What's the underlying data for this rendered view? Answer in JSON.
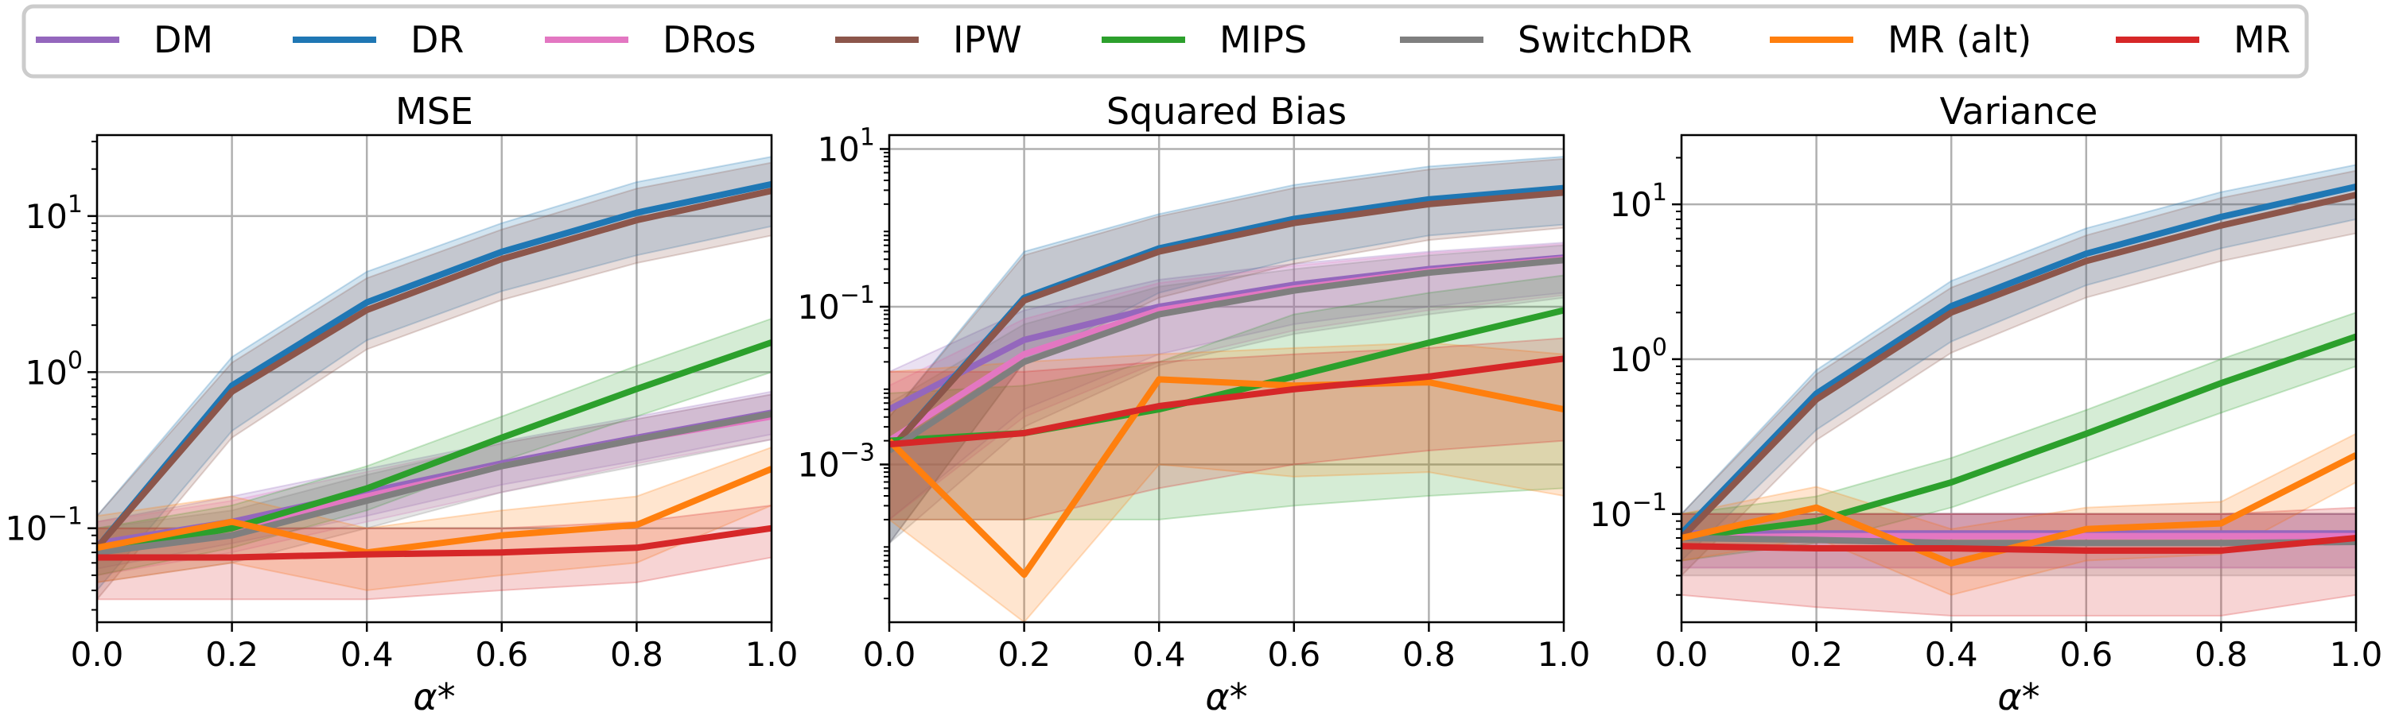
{
  "legend": {
    "placement": "top",
    "entries": [
      {
        "name": "DM",
        "color": "#9467bd"
      },
      {
        "name": "DR",
        "color": "#1f77b4"
      },
      {
        "name": "DRos",
        "color": "#e377c2"
      },
      {
        "name": "IPW",
        "color": "#8c564b"
      },
      {
        "name": "MIPS",
        "color": "#2ca02c"
      },
      {
        "name": "SwitchDR",
        "color": "#7f7f7f"
      },
      {
        "name": "MR (alt)",
        "color": "#ff7f0e"
      },
      {
        "name": "MR",
        "color": "#d62728"
      }
    ]
  },
  "chart_data": [
    {
      "type": "line",
      "title": "MSE",
      "xlabel": "α*",
      "ylabel": "",
      "yscale": "log",
      "grid": true,
      "xlim": [
        0.0,
        1.0
      ],
      "ylim": [
        0.025,
        33
      ],
      "xticks": [
        "0.0",
        "0.2",
        "0.4",
        "0.6",
        "0.8",
        "1.0"
      ],
      "yticks": [
        {
          "value": 0.1,
          "base": "10",
          "exp": "−1"
        },
        {
          "value": 1,
          "base": "10",
          "exp": "0"
        },
        {
          "value": 10,
          "base": "10",
          "exp": "1"
        }
      ],
      "x": [
        0.0,
        0.2,
        0.4,
        0.6,
        0.8,
        1.0
      ],
      "series": [
        {
          "name": "DM",
          "values": [
            0.08,
            0.11,
            0.17,
            0.26,
            0.38,
            0.55
          ],
          "lower": [
            0.055,
            0.08,
            0.12,
            0.19,
            0.27,
            0.4
          ],
          "upper": [
            0.11,
            0.16,
            0.24,
            0.36,
            0.52,
            0.75
          ]
        },
        {
          "name": "DR",
          "values": [
            0.075,
            0.82,
            2.8,
            5.9,
            10.5,
            16
          ],
          "lower": [
            0.04,
            0.42,
            1.6,
            3.3,
            5.6,
            8.6
          ],
          "upper": [
            0.12,
            1.25,
            4.4,
            9.0,
            16.5,
            24
          ]
        },
        {
          "name": "DRos",
          "values": [
            0.075,
            0.1,
            0.16,
            0.25,
            0.37,
            0.52
          ],
          "lower": [
            0.05,
            0.07,
            0.11,
            0.17,
            0.26,
            0.37
          ],
          "upper": [
            0.11,
            0.15,
            0.23,
            0.35,
            0.5,
            0.72
          ]
        },
        {
          "name": "IPW",
          "values": [
            0.075,
            0.75,
            2.5,
            5.3,
            9.4,
            14.5
          ],
          "lower": [
            0.035,
            0.38,
            1.4,
            2.9,
            5.0,
            7.5
          ],
          "upper": [
            0.12,
            1.15,
            4.0,
            8.2,
            15,
            22
          ]
        },
        {
          "name": "MIPS",
          "values": [
            0.07,
            0.1,
            0.18,
            0.38,
            0.78,
            1.55
          ],
          "lower": [
            0.05,
            0.075,
            0.13,
            0.27,
            0.52,
            1.0
          ],
          "upper": [
            0.1,
            0.14,
            0.25,
            0.52,
            1.1,
            2.2
          ]
        },
        {
          "name": "SwitchDR",
          "values": [
            0.07,
            0.09,
            0.15,
            0.25,
            0.37,
            0.54
          ],
          "lower": [
            0.045,
            0.06,
            0.1,
            0.17,
            0.25,
            0.37
          ],
          "upper": [
            0.1,
            0.13,
            0.22,
            0.35,
            0.5,
            0.72
          ]
        },
        {
          "name": "MR (alt)",
          "values": [
            0.075,
            0.11,
            0.07,
            0.09,
            0.105,
            0.24
          ],
          "lower": [
            0.045,
            0.06,
            0.04,
            0.05,
            0.06,
            0.14
          ],
          "upper": [
            0.12,
            0.16,
            0.1,
            0.13,
            0.16,
            0.33
          ]
        },
        {
          "name": "MR",
          "values": [
            0.065,
            0.065,
            0.068,
            0.07,
            0.075,
            0.1
          ],
          "lower": [
            0.035,
            0.035,
            0.035,
            0.04,
            0.045,
            0.065
          ],
          "upper": [
            0.1,
            0.1,
            0.1,
            0.1,
            0.11,
            0.14
          ]
        }
      ]
    },
    {
      "type": "line",
      "title": "Squared Bias",
      "xlabel": "α*",
      "ylabel": "",
      "yscale": "log",
      "grid": true,
      "xlim": [
        0.0,
        1.0
      ],
      "ylim": [
        1e-05,
        15
      ],
      "xticks": [
        "0.0",
        "0.2",
        "0.4",
        "0.6",
        "0.8",
        "1.0"
      ],
      "yticks": [
        {
          "value": 0.001,
          "base": "10",
          "exp": "−3"
        },
        {
          "value": 0.1,
          "base": "10",
          "exp": "−1"
        },
        {
          "value": 10,
          "base": "10",
          "exp": "1"
        }
      ],
      "x": [
        0.0,
        0.2,
        0.4,
        0.6,
        0.8,
        1.0
      ],
      "series": [
        {
          "name": "DM",
          "values": [
            0.005,
            0.038,
            0.1,
            0.19,
            0.3,
            0.42
          ],
          "lower": [
            0.0002,
            0.005,
            0.025,
            0.06,
            0.1,
            0.15
          ],
          "upper": [
            0.015,
            0.09,
            0.22,
            0.35,
            0.5,
            0.65
          ]
        },
        {
          "name": "DR",
          "values": [
            0.0015,
            0.13,
            0.55,
            1.3,
            2.3,
            3.2
          ],
          "lower": [
            0.0001,
            0.02,
            0.15,
            0.4,
            0.8,
            1.1
          ],
          "upper": [
            0.004,
            0.5,
            1.5,
            3.5,
            6.0,
            8.0
          ]
        },
        {
          "name": "DRos",
          "values": [
            0.002,
            0.025,
            0.09,
            0.17,
            0.28,
            0.4
          ],
          "lower": [
            0.0002,
            0.004,
            0.02,
            0.05,
            0.09,
            0.14
          ],
          "upper": [
            0.01,
            0.07,
            0.2,
            0.33,
            0.48,
            0.62
          ]
        },
        {
          "name": "IPW",
          "values": [
            0.0015,
            0.12,
            0.5,
            1.15,
            2.0,
            2.8
          ],
          "lower": [
            0.0001,
            0.02,
            0.13,
            0.35,
            0.7,
            1.0
          ],
          "upper": [
            0.004,
            0.45,
            1.4,
            3.2,
            5.5,
            7.5
          ]
        },
        {
          "name": "MIPS",
          "values": [
            0.002,
            0.0025,
            0.005,
            0.013,
            0.035,
            0.09
          ],
          "lower": [
            0.0002,
            0.0002,
            0.0002,
            0.0003,
            0.0004,
            0.0005
          ],
          "upper": [
            0.008,
            0.01,
            0.02,
            0.08,
            0.15,
            0.25
          ]
        },
        {
          "name": "SwitchDR",
          "values": [
            0.0015,
            0.02,
            0.08,
            0.16,
            0.27,
            0.39
          ],
          "lower": [
            0.0001,
            0.003,
            0.018,
            0.045,
            0.08,
            0.13
          ],
          "upper": [
            0.006,
            0.06,
            0.18,
            0.3,
            0.45,
            0.6
          ]
        },
        {
          "name": "MR (alt)",
          "values": [
            0.002,
            4e-05,
            0.012,
            0.01,
            0.011,
            0.005
          ],
          "lower": [
            0.0002,
            1e-05,
            0.001,
            0.0007,
            0.0008,
            0.0004
          ],
          "upper": [
            0.015,
            0.02,
            0.025,
            0.03,
            0.035,
            0.025
          ]
        },
        {
          "name": "MR",
          "values": [
            0.0018,
            0.0025,
            0.0055,
            0.009,
            0.013,
            0.022
          ],
          "lower": [
            0.0002,
            0.0002,
            0.0005,
            0.001,
            0.0015,
            0.002
          ],
          "upper": [
            0.015,
            0.015,
            0.02,
            0.025,
            0.03,
            0.04
          ]
        }
      ]
    },
    {
      "type": "line",
      "title": "Variance",
      "xlabel": "α*",
      "ylabel": "",
      "yscale": "log",
      "grid": true,
      "xlim": [
        0.0,
        1.0
      ],
      "ylim": [
        0.02,
        28
      ],
      "xticks": [
        "0.0",
        "0.2",
        "0.4",
        "0.6",
        "0.8",
        "1.0"
      ],
      "yticks": [
        {
          "value": 0.1,
          "base": "10",
          "exp": "−1"
        },
        {
          "value": 1,
          "base": "10",
          "exp": "0"
        },
        {
          "value": 10,
          "base": "10",
          "exp": "1"
        }
      ],
      "x": [
        0.0,
        0.2,
        0.4,
        0.6,
        0.8,
        1.0
      ],
      "series": [
        {
          "name": "DM",
          "values": [
            0.075,
            0.075,
            0.075,
            0.075,
            0.075,
            0.075
          ],
          "lower": [
            0.045,
            0.045,
            0.045,
            0.045,
            0.045,
            0.045
          ],
          "upper": [
            0.1,
            0.1,
            0.1,
            0.1,
            0.1,
            0.1
          ]
        },
        {
          "name": "DR",
          "values": [
            0.075,
            0.6,
            2.2,
            4.8,
            8.3,
            13
          ],
          "lower": [
            0.05,
            0.35,
            1.3,
            3.0,
            5.2,
            8.0
          ],
          "upper": [
            0.1,
            0.85,
            3.2,
            7.0,
            12,
            18
          ]
        },
        {
          "name": "DRos",
          "values": [
            0.07,
            0.072,
            0.072,
            0.072,
            0.072,
            0.072
          ],
          "lower": [
            0.045,
            0.045,
            0.045,
            0.045,
            0.045,
            0.045
          ],
          "upper": [
            0.1,
            0.1,
            0.1,
            0.1,
            0.1,
            0.1
          ]
        },
        {
          "name": "IPW",
          "values": [
            0.07,
            0.55,
            2.0,
            4.3,
            7.3,
            11.5
          ],
          "lower": [
            0.04,
            0.3,
            1.1,
            2.5,
            4.3,
            6.5
          ],
          "upper": [
            0.1,
            0.8,
            2.9,
            6.3,
            11,
            16.5
          ]
        },
        {
          "name": "MIPS",
          "values": [
            0.07,
            0.09,
            0.16,
            0.33,
            0.7,
            1.4
          ],
          "lower": [
            0.05,
            0.065,
            0.11,
            0.22,
            0.45,
            0.9
          ],
          "upper": [
            0.1,
            0.13,
            0.23,
            0.47,
            1.0,
            2.0
          ]
        },
        {
          "name": "SwitchDR",
          "values": [
            0.07,
            0.068,
            0.065,
            0.065,
            0.065,
            0.066
          ],
          "lower": [
            0.04,
            0.04,
            0.04,
            0.04,
            0.04,
            0.04
          ],
          "upper": [
            0.1,
            0.1,
            0.1,
            0.1,
            0.1,
            0.1
          ]
        },
        {
          "name": "MR (alt)",
          "values": [
            0.07,
            0.11,
            0.048,
            0.08,
            0.087,
            0.24
          ],
          "lower": [
            0.05,
            0.07,
            0.03,
            0.05,
            0.055,
            0.16
          ],
          "upper": [
            0.1,
            0.15,
            0.08,
            0.11,
            0.12,
            0.33
          ]
        },
        {
          "name": "MR",
          "values": [
            0.062,
            0.06,
            0.06,
            0.058,
            0.058,
            0.07
          ],
          "lower": [
            0.03,
            0.025,
            0.022,
            0.022,
            0.022,
            0.03
          ],
          "upper": [
            0.1,
            0.1,
            0.1,
            0.1,
            0.1,
            0.11
          ]
        }
      ]
    }
  ]
}
